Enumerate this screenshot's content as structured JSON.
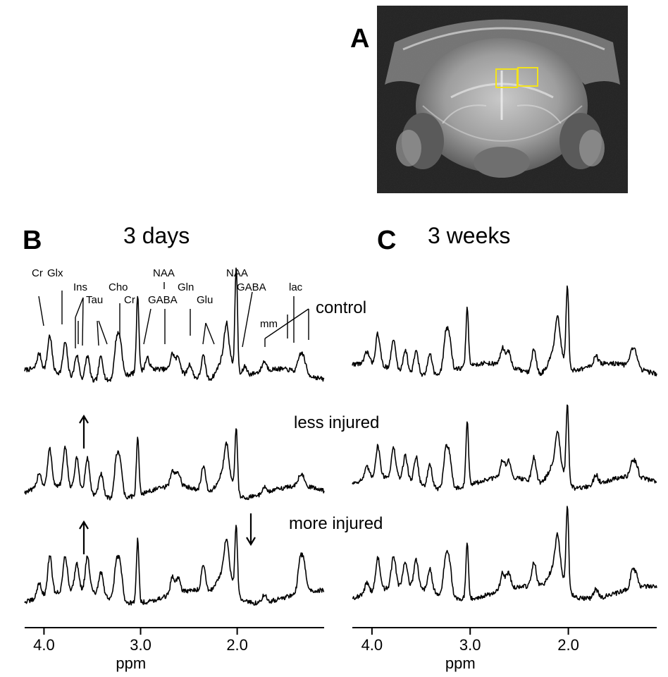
{
  "figure": {
    "panel_a": {
      "letter": "A"
    },
    "panel_b": {
      "letter": "B",
      "title": "3 days"
    },
    "panel_c": {
      "letter": "C",
      "title": "3 weeks"
    },
    "row_labels": [
      "control",
      "less injured",
      "more injured"
    ],
    "axis": {
      "label": "ppm",
      "ticks": [
        {
          "value": 4.0,
          "label": "4.0"
        },
        {
          "value": 3.0,
          "label": "3.0"
        },
        {
          "value": 2.0,
          "label": "2.0"
        }
      ]
    },
    "peak_labels": [
      "Cr",
      "Glx",
      "Ins",
      "Tau",
      "Cho",
      "Cr",
      "NAA",
      "GABA",
      "Gln",
      "Glu",
      "NAA",
      "GABA",
      "lac",
      "mm"
    ],
    "arrows": [
      "up",
      "up",
      "down"
    ],
    "roi_color": "#f2e21c"
  },
  "chart_data": [
    {
      "type": "line",
      "title": "3 days",
      "xlabel": "ppm",
      "x_reversed": true,
      "xlim": [
        4.2,
        1.1
      ],
      "series": [
        {
          "name": "control",
          "peaks": [
            [
              4.05,
              0.2
            ],
            [
              3.94,
              0.45
            ],
            [
              3.78,
              0.42
            ],
            [
              3.66,
              0.3
            ],
            [
              3.55,
              0.32
            ],
            [
              3.41,
              0.32
            ],
            [
              3.25,
              0.45
            ],
            [
              3.21,
              0.42
            ],
            [
              3.03,
              1.0
            ],
            [
              2.93,
              0.15
            ],
            [
              2.67,
              0.22
            ],
            [
              2.61,
              0.2
            ],
            [
              2.49,
              0.15
            ],
            [
              2.35,
              0.3
            ],
            [
              2.11,
              0.4
            ],
            [
              2.01,
              1.35
            ],
            [
              1.92,
              0.12
            ],
            [
              1.72,
              0.12
            ],
            [
              1.35,
              0.2
            ],
            [
              1.31,
              0.18
            ]
          ]
        },
        {
          "name": "less injured",
          "peaks": [
            [
              4.05,
              0.2
            ],
            [
              3.94,
              0.48
            ],
            [
              3.78,
              0.5
            ],
            [
              3.66,
              0.4
            ],
            [
              3.55,
              0.45
            ],
            [
              3.41,
              0.3
            ],
            [
              3.25,
              0.48
            ],
            [
              3.21,
              0.42
            ],
            [
              3.03,
              0.75
            ],
            [
              2.67,
              0.2
            ],
            [
              2.61,
              0.18
            ],
            [
              2.35,
              0.32
            ],
            [
              2.11,
              0.35
            ],
            [
              2.01,
              0.8
            ],
            [
              1.72,
              0.08
            ],
            [
              1.35,
              0.12
            ],
            [
              1.31,
              0.1
            ]
          ]
        },
        {
          "name": "more injured",
          "peaks": [
            [
              4.05,
              0.2
            ],
            [
              3.94,
              0.5
            ],
            [
              3.78,
              0.45
            ],
            [
              3.66,
              0.35
            ],
            [
              3.55,
              0.45
            ],
            [
              3.41,
              0.3
            ],
            [
              3.25,
              0.45
            ],
            [
              3.21,
              0.42
            ],
            [
              3.03,
              0.82
            ],
            [
              2.67,
              0.22
            ],
            [
              2.61,
              0.2
            ],
            [
              2.35,
              0.32
            ],
            [
              2.11,
              0.4
            ],
            [
              2.01,
              0.85
            ],
            [
              1.72,
              0.1
            ],
            [
              1.35,
              0.38
            ],
            [
              1.31,
              0.35
            ]
          ]
        }
      ]
    },
    {
      "type": "line",
      "title": "3 weeks",
      "xlabel": "ppm",
      "x_reversed": true,
      "xlim": [
        4.2,
        1.1
      ],
      "series": [
        {
          "name": "control",
          "peaks": [
            [
              4.05,
              0.15
            ],
            [
              3.94,
              0.4
            ],
            [
              3.78,
              0.38
            ],
            [
              3.66,
              0.3
            ],
            [
              3.55,
              0.32
            ],
            [
              3.41,
              0.3
            ],
            [
              3.25,
              0.45
            ],
            [
              3.21,
              0.4
            ],
            [
              3.03,
              0.75
            ],
            [
              2.67,
              0.22
            ],
            [
              2.61,
              0.2
            ],
            [
              2.35,
              0.32
            ],
            [
              2.11,
              0.4
            ],
            [
              2.01,
              1.05
            ],
            [
              1.72,
              0.12
            ],
            [
              1.35,
              0.2
            ],
            [
              1.31,
              0.15
            ]
          ]
        },
        {
          "name": "less injured",
          "peaks": [
            [
              4.05,
              0.15
            ],
            [
              3.94,
              0.4
            ],
            [
              3.78,
              0.38
            ],
            [
              3.66,
              0.32
            ],
            [
              3.55,
              0.35
            ],
            [
              3.41,
              0.3
            ],
            [
              3.25,
              0.45
            ],
            [
              3.21,
              0.4
            ],
            [
              3.03,
              0.85
            ],
            [
              2.67,
              0.22
            ],
            [
              2.61,
              0.2
            ],
            [
              2.35,
              0.32
            ],
            [
              2.11,
              0.4
            ],
            [
              2.01,
              1.0
            ],
            [
              1.72,
              0.12
            ],
            [
              1.35,
              0.18
            ],
            [
              1.31,
              0.15
            ]
          ]
        },
        {
          "name": "more injured",
          "peaks": [
            [
              4.05,
              0.15
            ],
            [
              3.94,
              0.42
            ],
            [
              3.78,
              0.4
            ],
            [
              3.66,
              0.32
            ],
            [
              3.55,
              0.35
            ],
            [
              3.41,
              0.3
            ],
            [
              3.25,
              0.45
            ],
            [
              3.21,
              0.4
            ],
            [
              3.03,
              0.72
            ],
            [
              2.67,
              0.22
            ],
            [
              2.61,
              0.2
            ],
            [
              2.35,
              0.32
            ],
            [
              2.11,
              0.4
            ],
            [
              2.01,
              1.05
            ],
            [
              1.72,
              0.12
            ],
            [
              1.35,
              0.2
            ],
            [
              1.31,
              0.15
            ]
          ]
        }
      ]
    }
  ]
}
